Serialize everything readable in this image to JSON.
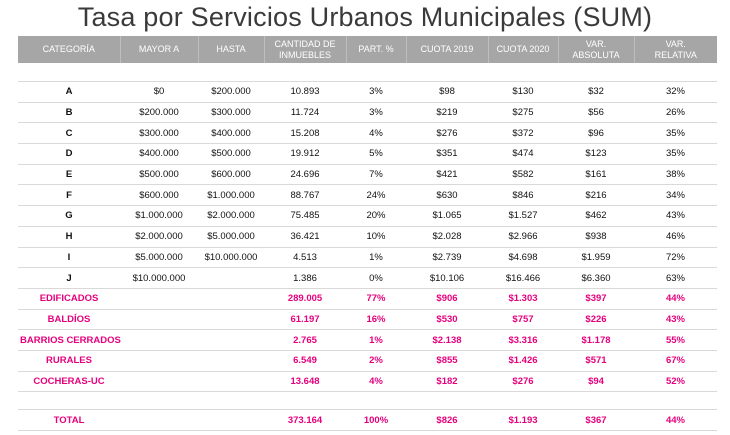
{
  "title": "Tasa por Servicios Urbanos Municipales (SUM)",
  "headers": {
    "categoria": "CATEGORÍA",
    "mayor_a": "MAYOR A",
    "hasta": "HASTA",
    "cantidad_1": "CANTIDAD DE",
    "cantidad_2": "INMUEBLES",
    "part": "PART. %",
    "cuota2019": "CUOTA 2019",
    "cuota2020": "CUOTA 2020",
    "var_abs_1": "VAR.",
    "var_abs_2": "ABSOLUTA",
    "var_rel_1": "VAR.",
    "var_rel_2": "RELATIVA"
  },
  "rows": [
    {
      "cat": "A",
      "mayor": "$0",
      "hasta": "$200.000",
      "cant": "10.893",
      "part": "3%",
      "c2019": "$98",
      "c2020": "$130",
      "vabs": "$32",
      "vrel": "32%"
    },
    {
      "cat": "B",
      "mayor": "$200.000",
      "hasta": "$300.000",
      "cant": "11.724",
      "part": "3%",
      "c2019": "$219",
      "c2020": "$275",
      "vabs": "$56",
      "vrel": "26%"
    },
    {
      "cat": "C",
      "mayor": "$300.000",
      "hasta": "$400.000",
      "cant": "15.208",
      "part": "4%",
      "c2019": "$276",
      "c2020": "$372",
      "vabs": "$96",
      "vrel": "35%"
    },
    {
      "cat": "D",
      "mayor": "$400.000",
      "hasta": "$500.000",
      "cant": "19.912",
      "part": "5%",
      "c2019": "$351",
      "c2020": "$474",
      "vabs": "$123",
      "vrel": "35%"
    },
    {
      "cat": "E",
      "mayor": "$500.000",
      "hasta": "$600.000",
      "cant": "24.696",
      "part": "7%",
      "c2019": "$421",
      "c2020": "$582",
      "vabs": "$161",
      "vrel": "38%"
    },
    {
      "cat": "F",
      "mayor": "$600.000",
      "hasta": "$1.000.000",
      "cant": "88.767",
      "part": "24%",
      "c2019": "$630",
      "c2020": "$846",
      "vabs": "$216",
      "vrel": "34%"
    },
    {
      "cat": "G",
      "mayor": "$1.000.000",
      "hasta": "$2.000.000",
      "cant": "75.485",
      "part": "20%",
      "c2019": "$1.065",
      "c2020": "$1.527",
      "vabs": "$462",
      "vrel": "43%"
    },
    {
      "cat": "H",
      "mayor": "$2.000.000",
      "hasta": "$5.000.000",
      "cant": "36.421",
      "part": "10%",
      "c2019": "$2.028",
      "c2020": "$2.966",
      "vabs": "$938",
      "vrel": "46%"
    },
    {
      "cat": "I",
      "mayor": "$5.000.000",
      "hasta": "$10.000.000",
      "cant": "4.513",
      "part": "1%",
      "c2019": "$2.739",
      "c2020": "$4.698",
      "vabs": "$1.959",
      "vrel": "72%"
    },
    {
      "cat": "J",
      "mayor": "$10.000.000",
      "hasta": "",
      "cant": "1.386",
      "part": "0%",
      "c2019": "$10.106",
      "c2020": "$16.466",
      "vabs": "$6.360",
      "vrel": "63%"
    }
  ],
  "groups": [
    {
      "cat": "EDIFICADOS",
      "cant": "289.005",
      "part": "77%",
      "c2019": "$906",
      "c2020": "$1.303",
      "vabs": "$397",
      "vrel": "44%"
    },
    {
      "cat": "BALDÍOS",
      "cant": "61.197",
      "part": "16%",
      "c2019": "$530",
      "c2020": "$757",
      "vabs": "$226",
      "vrel": "43%"
    },
    {
      "cat": "BARRIOS CERRADOS",
      "cant": "2.765",
      "part": "1%",
      "c2019": "$2.138",
      "c2020": "$3.316",
      "vabs": "$1.178",
      "vrel": "55%"
    },
    {
      "cat": "RURALES",
      "cant": "6.549",
      "part": "2%",
      "c2019": "$855",
      "c2020": "$1.426",
      "vabs": "$571",
      "vrel": "67%"
    },
    {
      "cat": "COCHERAS-UC",
      "cant": "13.648",
      "part": "4%",
      "c2019": "$182",
      "c2020": "$276",
      "vabs": "$94",
      "vrel": "52%"
    }
  ],
  "total": {
    "cat": "TOTAL",
    "cant": "373.164",
    "part": "100%",
    "c2019": "$826",
    "c2020": "$1.193",
    "vabs": "$367",
    "vrel": "44%"
  },
  "colors": {
    "header_bg": "#a6a6a6",
    "accent": "#e6007e"
  }
}
